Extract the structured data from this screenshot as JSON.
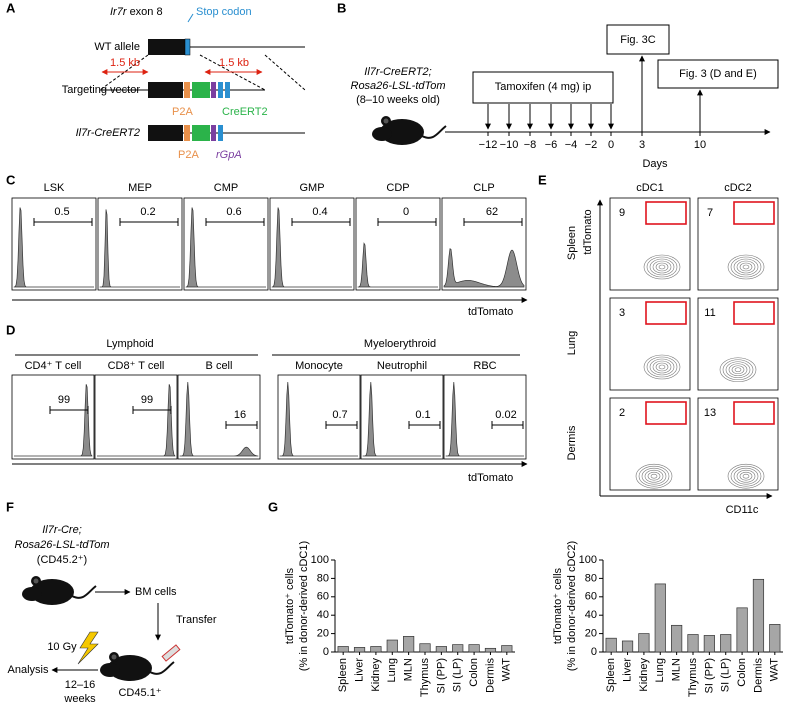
{
  "panel_a": {
    "letter": "A",
    "exon_gene": "Ir7r",
    "exon_text": "exon 8",
    "stop_codon": "Stop codon",
    "rows": [
      "WT allele",
      "Targeting vector",
      "Il7r-CreERT2"
    ],
    "arm_labels": [
      "1.5 kb",
      "1.5 kb"
    ],
    "p2a": "P2A",
    "creert2": "CreERT2",
    "p2a_2": "P2A",
    "rgpa": "rGpA"
  },
  "panel_b": {
    "letter": "B",
    "strain": [
      "Il7r-CreERT2;",
      "Rosa26-LSL-tdTom",
      "(8–10 weeks old)"
    ],
    "tamoxifen": "Tamoxifen (4 mg) ip",
    "fig_3c": "Fig. 3C",
    "fig_3de": "Fig. 3 (D and E)",
    "days": [
      "−12",
      "−10",
      "−8",
      "−6",
      "−4",
      "−2",
      "0",
      "3",
      "10"
    ],
    "days_label": "Days"
  },
  "panel_c": {
    "letter": "C",
    "populations": [
      {
        "name": "LSK",
        "value": 0.5
      },
      {
        "name": "MEP",
        "value": 0.2
      },
      {
        "name": "CMP",
        "value": 0.6
      },
      {
        "name": "GMP",
        "value": 0.4
      },
      {
        "name": "CDP",
        "value": 0
      },
      {
        "name": "CLP",
        "value": 62
      }
    ],
    "axis": "tdTomato"
  },
  "panel_d": {
    "letter": "D",
    "groups": [
      "Lymphoid",
      "Myeloerythroid"
    ],
    "populations": [
      {
        "name": "CD4⁺ T cell",
        "value": 99
      },
      {
        "name": "CD8⁺ T cell",
        "value": 99
      },
      {
        "name": "B cell",
        "value": 16
      },
      {
        "name": "Monocyte",
        "value": 0.7
      },
      {
        "name": "Neutrophil",
        "value": 0.1
      },
      {
        "name": "RBC",
        "value": 0.02
      }
    ],
    "axis": "tdTomato"
  },
  "panel_e": {
    "letter": "E",
    "columns": [
      "cDC1",
      "cDC2"
    ],
    "rows": [
      "Spleen",
      "Lung",
      "Dermis"
    ],
    "values": [
      [
        9,
        7
      ],
      [
        3,
        11
      ],
      [
        2,
        13
      ]
    ],
    "y_axis": "tdTomato",
    "x_axis": "CD11c"
  },
  "panel_f": {
    "letter": "F",
    "donor": [
      "Il7r-Cre;",
      "Rosa26-LSL-tdTom",
      "(CD45.2⁺)"
    ],
    "bm": "BM cells",
    "transfer": "Transfer",
    "dose": "10 Gy",
    "recipient": "CD45.1⁺",
    "analysis": "Analysis",
    "time": [
      "12–16",
      "weeks"
    ]
  },
  "panel_g": {
    "letter": "G"
  },
  "chart_data": [
    {
      "type": "bar",
      "ylabel": [
        "tdTomato⁺ cells",
        "(% in donor-derived cDC1)"
      ],
      "categories": [
        "Spleen",
        "Liver",
        "Kidney",
        "Lung",
        "MLN",
        "Thymus",
        "SI (PP)",
        "SI (LP)",
        "Colon",
        "Dermis",
        "WAT"
      ],
      "values": [
        6,
        5,
        6,
        13,
        17,
        9,
        6,
        8,
        8,
        4,
        7
      ],
      "color": "#a6a6a6",
      "ylim": [
        0,
        100
      ],
      "yticks": [
        0,
        20,
        40,
        60,
        80,
        100
      ]
    },
    {
      "type": "bar",
      "ylabel": [
        "tdTomato⁺ cells",
        "(% in donor-derived cDC2)"
      ],
      "categories": [
        "Spleen",
        "Liver",
        "Kidney",
        "Lung",
        "MLN",
        "Thymus",
        "SI (PP)",
        "SI (LP)",
        "Colon",
        "Dermis",
        "WAT"
      ],
      "values": [
        15,
        12,
        20,
        74,
        29,
        19,
        18,
        19,
        48,
        79,
        30
      ],
      "color": "#a6a6a6",
      "ylim": [
        0,
        100
      ],
      "yticks": [
        0,
        20,
        40,
        60,
        80,
        100
      ]
    }
  ]
}
